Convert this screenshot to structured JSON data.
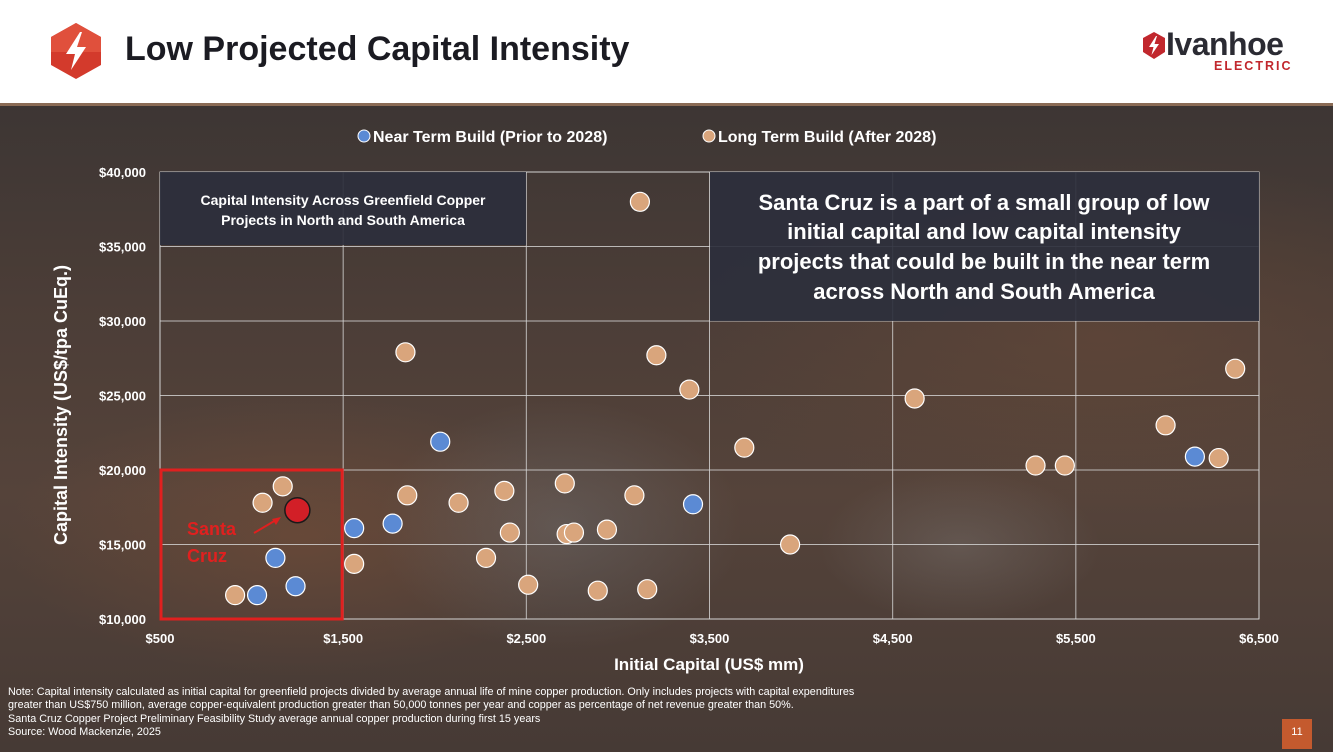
{
  "header": {
    "title": "Low Projected Capital Intensity",
    "icon": "lightning-bolt-icon",
    "logo": {
      "word": "Ivanhoe",
      "sub": "ELECTRIC"
    }
  },
  "colors": {
    "near_term": "#5b8ad4",
    "long_term": "#d9a57c",
    "santa_cruz": "#d21f27",
    "highlight_box": "#e0201f",
    "brand_red": "#c1272d"
  },
  "chart_data": {
    "type": "scatter",
    "xlabel": "Initial Capital (US$ mm)",
    "ylabel": "Capital Intensity (US$/tpa CuEq.)",
    "xlim": [
      500,
      6500
    ],
    "ylim": [
      10000,
      40000
    ],
    "x_ticks": [
      500,
      1500,
      2500,
      3500,
      4500,
      5500,
      6500
    ],
    "y_ticks": [
      10000,
      15000,
      20000,
      25000,
      30000,
      35000,
      40000
    ],
    "x_tick_labels": [
      "$500",
      "$1,500",
      "$2,500",
      "$3,500",
      "$4,500",
      "$5,500",
      "$6,500"
    ],
    "y_tick_labels": [
      "$10,000",
      "$15,000",
      "$20,000",
      "$25,000",
      "$30,000",
      "$35,000",
      "$40,000"
    ],
    "grid": true,
    "legend": "top-center",
    "series": [
      {
        "name": "Near Term Build (Prior to 2028)",
        "points": [
          [
            1030,
            11600
          ],
          [
            1240,
            12200
          ],
          [
            1130,
            14100
          ],
          [
            1560,
            16100
          ],
          [
            1770,
            16400
          ],
          [
            2030,
            21900
          ],
          [
            3410,
            17700
          ],
          [
            6150,
            20900
          ]
        ]
      },
      {
        "name": "Long Term Build (After 2028)",
        "points": [
          [
            910,
            11600
          ],
          [
            1060,
            17800
          ],
          [
            1170,
            18900
          ],
          [
            1560,
            13700
          ],
          [
            1840,
            27900
          ],
          [
            1850,
            18300
          ],
          [
            2130,
            17800
          ],
          [
            2280,
            14100
          ],
          [
            2380,
            18600
          ],
          [
            2410,
            15800
          ],
          [
            2510,
            12300
          ],
          [
            2710,
            19100
          ],
          [
            2720,
            15700
          ],
          [
            2760,
            15800
          ],
          [
            2890,
            11900
          ],
          [
            2940,
            16000
          ],
          [
            3090,
            18300
          ],
          [
            3120,
            38000
          ],
          [
            3160,
            12000
          ],
          [
            3210,
            27700
          ],
          [
            3390,
            25400
          ],
          [
            3690,
            21500
          ],
          [
            3940,
            15000
          ],
          [
            4620,
            24800
          ],
          [
            5280,
            20300
          ],
          [
            5440,
            20300
          ],
          [
            5990,
            23000
          ],
          [
            6280,
            20800
          ],
          [
            6370,
            26800
          ]
        ]
      }
    ],
    "highlight": {
      "name": "Santa Cruz",
      "label_line1": "Santa",
      "label_line2": "Cruz",
      "point": [
        1250,
        17300
      ],
      "box": {
        "x": [
          500,
          1500
        ],
        "y": [
          10000,
          20000
        ]
      }
    },
    "annotations": {
      "title_box_line1": "Capital Intensity Across Greenfield Copper",
      "title_box_line2": "Projects in North and South America",
      "callout_line1": "Santa Cruz is a part of a small group of low",
      "callout_line2": "initial capital and low capital intensity",
      "callout_line3": "projects that could be built in the near term",
      "callout_line4": "across North and South America"
    }
  },
  "footnote": {
    "line1": "Note: Capital intensity calculated as initial capital for greenfield projects divided by average annual life of mine copper production. Only includes projects with capital expenditures",
    "line2": "greater than US$750 million, average copper-equivalent production greater than 50,000 tonnes per year and copper as percentage of net revenue greater than 50%.",
    "line3": "Santa Cruz Copper Project Preliminary Feasibility Study average annual copper production during first 15 years",
    "line4": "Source: Wood Mackenzie, 2025"
  },
  "page_number": "11"
}
